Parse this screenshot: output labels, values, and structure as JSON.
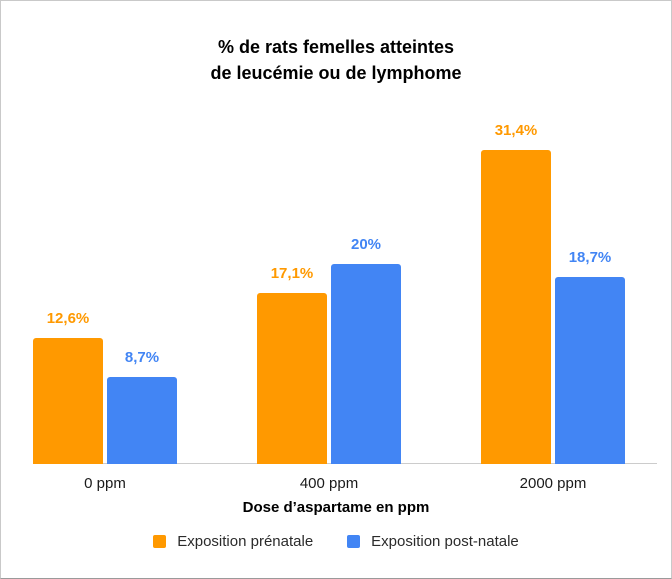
{
  "chart_data": {
    "type": "bar",
    "title": "% de rats femelles atteintes\nde leucémie ou de lymphome",
    "categories": [
      "0 ppm",
      "400 ppm",
      "2000 ppm"
    ],
    "series": [
      {
        "name": "Exposition prénatale",
        "color": "#FF9900",
        "values": [
          12.6,
          17.1,
          31.4
        ],
        "value_labels": [
          "12,6%",
          "17,1%",
          "31,4%"
        ]
      },
      {
        "name": "Exposition post-natale",
        "color": "#4285F4",
        "values": [
          8.7,
          20,
          18.7
        ],
        "value_labels": [
          "8,7%",
          "20%",
          "18,7%"
        ]
      }
    ],
    "xlabel": "Dose d’aspartame en ppm",
    "ylabel": "",
    "ylim": [
      0,
      36.5
    ],
    "grid": false,
    "legend_position": "bottom",
    "data_labels": true,
    "axis_line_color": "#cccccc"
  }
}
